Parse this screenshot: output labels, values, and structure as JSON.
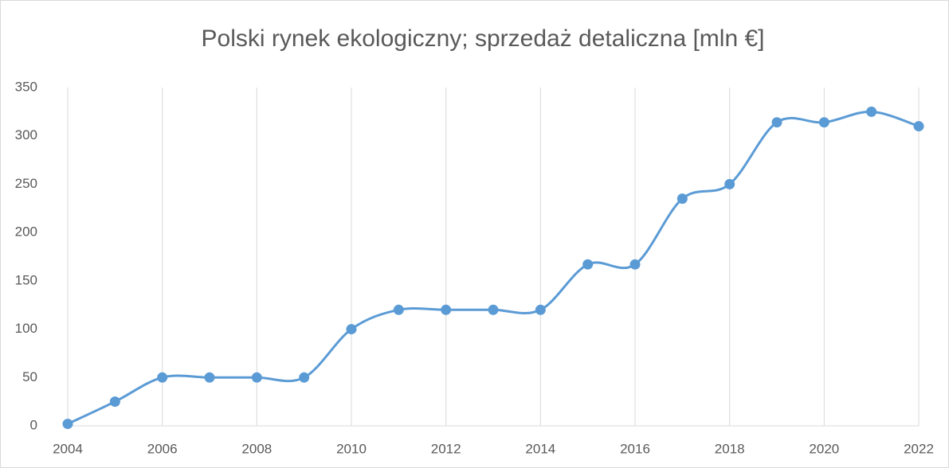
{
  "chart_data": {
    "type": "line",
    "title": "Polski rynek ekologiczny; sprzedaż detaliczna  [mln €]",
    "x": [
      2004,
      2005,
      2006,
      2007,
      2008,
      2009,
      2010,
      2011,
      2012,
      2013,
      2014,
      2015,
      2016,
      2017,
      2018,
      2019,
      2020,
      2021,
      2022
    ],
    "series": [
      {
        "name": "Sprzedaż detaliczna",
        "color": "#5b9bd5",
        "values": [
          2,
          25,
          50,
          50,
          50,
          50,
          100,
          120,
          120,
          120,
          120,
          167,
          167,
          235,
          250,
          314,
          314,
          325,
          310
        ]
      }
    ],
    "xlim": [
      2004,
      2022
    ],
    "xticks": [
      2004,
      2006,
      2008,
      2010,
      2012,
      2014,
      2016,
      2018,
      2020,
      2022
    ],
    "ylim": [
      0,
      350
    ],
    "yticks": [
      0,
      50,
      100,
      150,
      200,
      250,
      300,
      350
    ],
    "grid": "x",
    "smooth": true
  }
}
